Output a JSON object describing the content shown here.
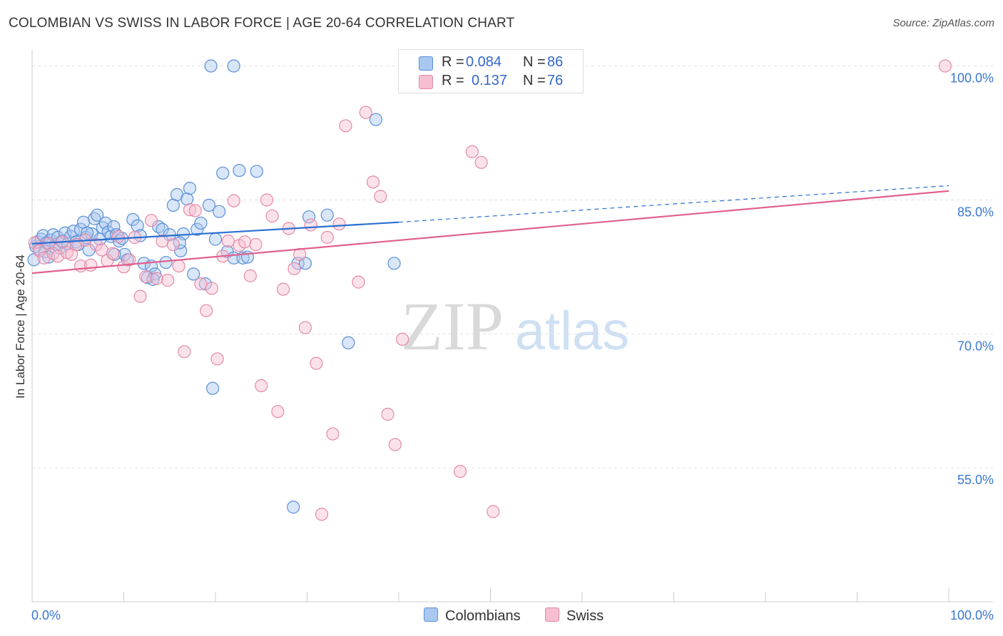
{
  "header": {
    "title": "COLOMBIAN VS SWISS IN LABOR FORCE | AGE 20-64 CORRELATION CHART",
    "source": "Source: ZipAtlas.com"
  },
  "watermark": {
    "zip": "ZIP",
    "atlas": "atlas"
  },
  "legend_top": [
    {
      "r_label": "R =",
      "r_value": "0.084",
      "n_label": "N =",
      "n_value": "86"
    },
    {
      "r_label": "R =",
      "r_value": "0.137",
      "n_label": "N =",
      "n_value": "76"
    }
  ],
  "legend_bottom": [
    "Colombians",
    "Swiss"
  ],
  "colors": {
    "colombians_fill": "#a8c8f0",
    "colombians_stroke": "#5b8fd8",
    "colombians_line": "#2b6fd0",
    "swiss_fill": "#f6bed0",
    "swiss_stroke": "#e48aa8",
    "swiss_line": "#e06090",
    "tick_label": "#3a78d0"
  },
  "chart_data": {
    "type": "scatter",
    "title": "COLOMBIAN VS SWISS IN LABOR FORCE | AGE 20-64 CORRELATION CHART",
    "xlabel": "",
    "ylabel": "In Labor Force | Age 20-64",
    "xlim": [
      0,
      100
    ],
    "ylim": [
      40,
      101
    ],
    "x_tick_labels": [
      "0.0%",
      "100.0%"
    ],
    "y_ticks": [
      {
        "value": 55,
        "label": "55.0%"
      },
      {
        "value": 70,
        "label": "70.0%"
      },
      {
        "value": 85,
        "label": "85.0%"
      },
      {
        "value": 100,
        "label": "100.0%"
      }
    ],
    "grid": "horizontal dashed",
    "legend": "top-center",
    "series": [
      {
        "name": "Colombians",
        "r": 0.084,
        "n": 86,
        "trend": {
          "x": [
            0,
            40,
            100
          ],
          "y": [
            80.1,
            82.5,
            86.6
          ],
          "solid_until": 40
        },
        "points": [
          [
            0.2,
            78.3
          ],
          [
            0.4,
            79.8
          ],
          [
            0.6,
            80.3
          ],
          [
            0.8,
            79.5
          ],
          [
            1.0,
            80.6
          ],
          [
            1.2,
            81.0
          ],
          [
            1.4,
            79.2
          ],
          [
            1.6,
            80.2
          ],
          [
            1.8,
            78.6
          ],
          [
            2.0,
            80.5
          ],
          [
            2.3,
            81.1
          ],
          [
            2.6,
            80.0
          ],
          [
            2.8,
            80.8
          ],
          [
            3.0,
            79.6
          ],
          [
            3.3,
            80.4
          ],
          [
            3.6,
            81.3
          ],
          [
            3.9,
            80.1
          ],
          [
            4.2,
            80.9
          ],
          [
            4.5,
            81.5
          ],
          [
            4.8,
            80.3
          ],
          [
            5.0,
            80.0
          ],
          [
            5.3,
            81.7
          ],
          [
            5.6,
            82.5
          ],
          [
            5.9,
            80.8
          ],
          [
            6.2,
            79.4
          ],
          [
            6.5,
            81.2
          ],
          [
            6.8,
            82.9
          ],
          [
            7.1,
            83.3
          ],
          [
            7.4,
            80.6
          ],
          [
            7.7,
            81.9
          ],
          [
            8.0,
            82.4
          ],
          [
            8.3,
            81.4
          ],
          [
            8.6,
            80.9
          ],
          [
            8.9,
            82.0
          ],
          [
            9.2,
            81.1
          ],
          [
            9.5,
            80.4
          ],
          [
            9.8,
            80.7
          ],
          [
            10.1,
            78.9
          ],
          [
            10.4,
            78.3
          ],
          [
            11.0,
            82.8
          ],
          [
            11.5,
            82.1
          ],
          [
            11.8,
            81.0
          ],
          [
            12.2,
            77.9
          ],
          [
            12.6,
            76.3
          ],
          [
            13.0,
            77.6
          ],
          [
            13.4,
            76.7
          ],
          [
            13.8,
            82.0
          ],
          [
            14.2,
            81.7
          ],
          [
            14.6,
            78.0
          ],
          [
            15.0,
            81.1
          ],
          [
            15.4,
            84.4
          ],
          [
            15.8,
            85.6
          ],
          [
            16.2,
            79.3
          ],
          [
            16.5,
            81.2
          ],
          [
            16.9,
            85.1
          ],
          [
            17.2,
            86.3
          ],
          [
            17.6,
            76.7
          ],
          [
            18.0,
            81.7
          ],
          [
            18.4,
            82.4
          ],
          [
            18.9,
            75.6
          ],
          [
            19.3,
            84.4
          ],
          [
            19.7,
            63.9
          ],
          [
            20.0,
            80.6
          ],
          [
            20.4,
            83.7
          ],
          [
            20.8,
            88.0
          ],
          [
            21.3,
            79.2
          ],
          [
            22.0,
            78.5
          ],
          [
            22.6,
            88.3
          ],
          [
            23.0,
            78.5
          ],
          [
            23.5,
            78.6
          ],
          [
            19.5,
            100.0
          ],
          [
            22.0,
            100.0
          ],
          [
            24.5,
            88.2
          ],
          [
            28.5,
            50.6
          ],
          [
            29.0,
            77.9
          ],
          [
            29.8,
            77.9
          ],
          [
            30.2,
            83.1
          ],
          [
            32.2,
            83.3
          ],
          [
            34.5,
            69.0
          ],
          [
            37.5,
            94.0
          ],
          [
            39.5,
            77.9
          ],
          [
            41.0,
            100.0
          ],
          [
            13.2,
            76.1
          ],
          [
            16.1,
            80.2
          ],
          [
            9.0,
            78.9
          ],
          [
            6.0,
            81.3
          ]
        ]
      },
      {
        "name": "Swiss",
        "r": 0.137,
        "n": 76,
        "trend": {
          "x": [
            0,
            100
          ],
          "y": [
            76.8,
            86.0
          ]
        },
        "points": [
          [
            0.3,
            80.2
          ],
          [
            0.8,
            79.3
          ],
          [
            1.3,
            78.5
          ],
          [
            1.8,
            80.1
          ],
          [
            2.3,
            79.0
          ],
          [
            2.8,
            78.7
          ],
          [
            3.3,
            80.3
          ],
          [
            3.8,
            79.1
          ],
          [
            4.3,
            78.9
          ],
          [
            4.8,
            80.0
          ],
          [
            5.3,
            77.6
          ],
          [
            5.8,
            80.5
          ],
          [
            6.4,
            77.7
          ],
          [
            7.0,
            80.0
          ],
          [
            7.6,
            79.4
          ],
          [
            8.2,
            78.2
          ],
          [
            8.8,
            79.0
          ],
          [
            9.4,
            80.9
          ],
          [
            10.0,
            77.5
          ],
          [
            10.6,
            78.3
          ],
          [
            11.2,
            80.8
          ],
          [
            11.8,
            74.2
          ],
          [
            12.4,
            76.4
          ],
          [
            13.0,
            82.7
          ],
          [
            13.6,
            76.2
          ],
          [
            14.2,
            80.4
          ],
          [
            14.8,
            76.0
          ],
          [
            15.4,
            80.0
          ],
          [
            16.0,
            77.6
          ],
          [
            16.6,
            68.0
          ],
          [
            17.2,
            83.9
          ],
          [
            17.8,
            83.8
          ],
          [
            18.4,
            75.6
          ],
          [
            19.0,
            72.6
          ],
          [
            19.6,
            75.1
          ],
          [
            20.2,
            67.2
          ],
          [
            20.8,
            78.7
          ],
          [
            21.4,
            80.4
          ],
          [
            22.0,
            84.9
          ],
          [
            22.6,
            79.9
          ],
          [
            23.2,
            80.3
          ],
          [
            23.8,
            76.5
          ],
          [
            24.4,
            80.0
          ],
          [
            25.0,
            64.2
          ],
          [
            25.6,
            85.0
          ],
          [
            26.2,
            83.2
          ],
          [
            26.8,
            61.3
          ],
          [
            27.4,
            75.0
          ],
          [
            28.0,
            81.8
          ],
          [
            28.6,
            77.3
          ],
          [
            29.2,
            78.9
          ],
          [
            29.8,
            70.7
          ],
          [
            30.4,
            82.2
          ],
          [
            31.0,
            66.7
          ],
          [
            31.6,
            49.8
          ],
          [
            32.2,
            80.8
          ],
          [
            32.8,
            58.8
          ],
          [
            33.5,
            82.3
          ],
          [
            34.2,
            93.3
          ],
          [
            35.6,
            75.8
          ],
          [
            36.4,
            94.8
          ],
          [
            37.2,
            87.0
          ],
          [
            38.0,
            85.4
          ],
          [
            38.8,
            61.0
          ],
          [
            39.6,
            57.6
          ],
          [
            40.4,
            69.4
          ],
          [
            41.2,
            100.0
          ],
          [
            42.2,
            100.0
          ],
          [
            43.0,
            100.0
          ],
          [
            45.3,
            100.0
          ],
          [
            46.4,
            100.0
          ],
          [
            46.7,
            54.6
          ],
          [
            48.0,
            90.4
          ],
          [
            49.0,
            89.2
          ],
          [
            50.3,
            50.1
          ],
          [
            99.6,
            100.0
          ]
        ]
      }
    ]
  }
}
